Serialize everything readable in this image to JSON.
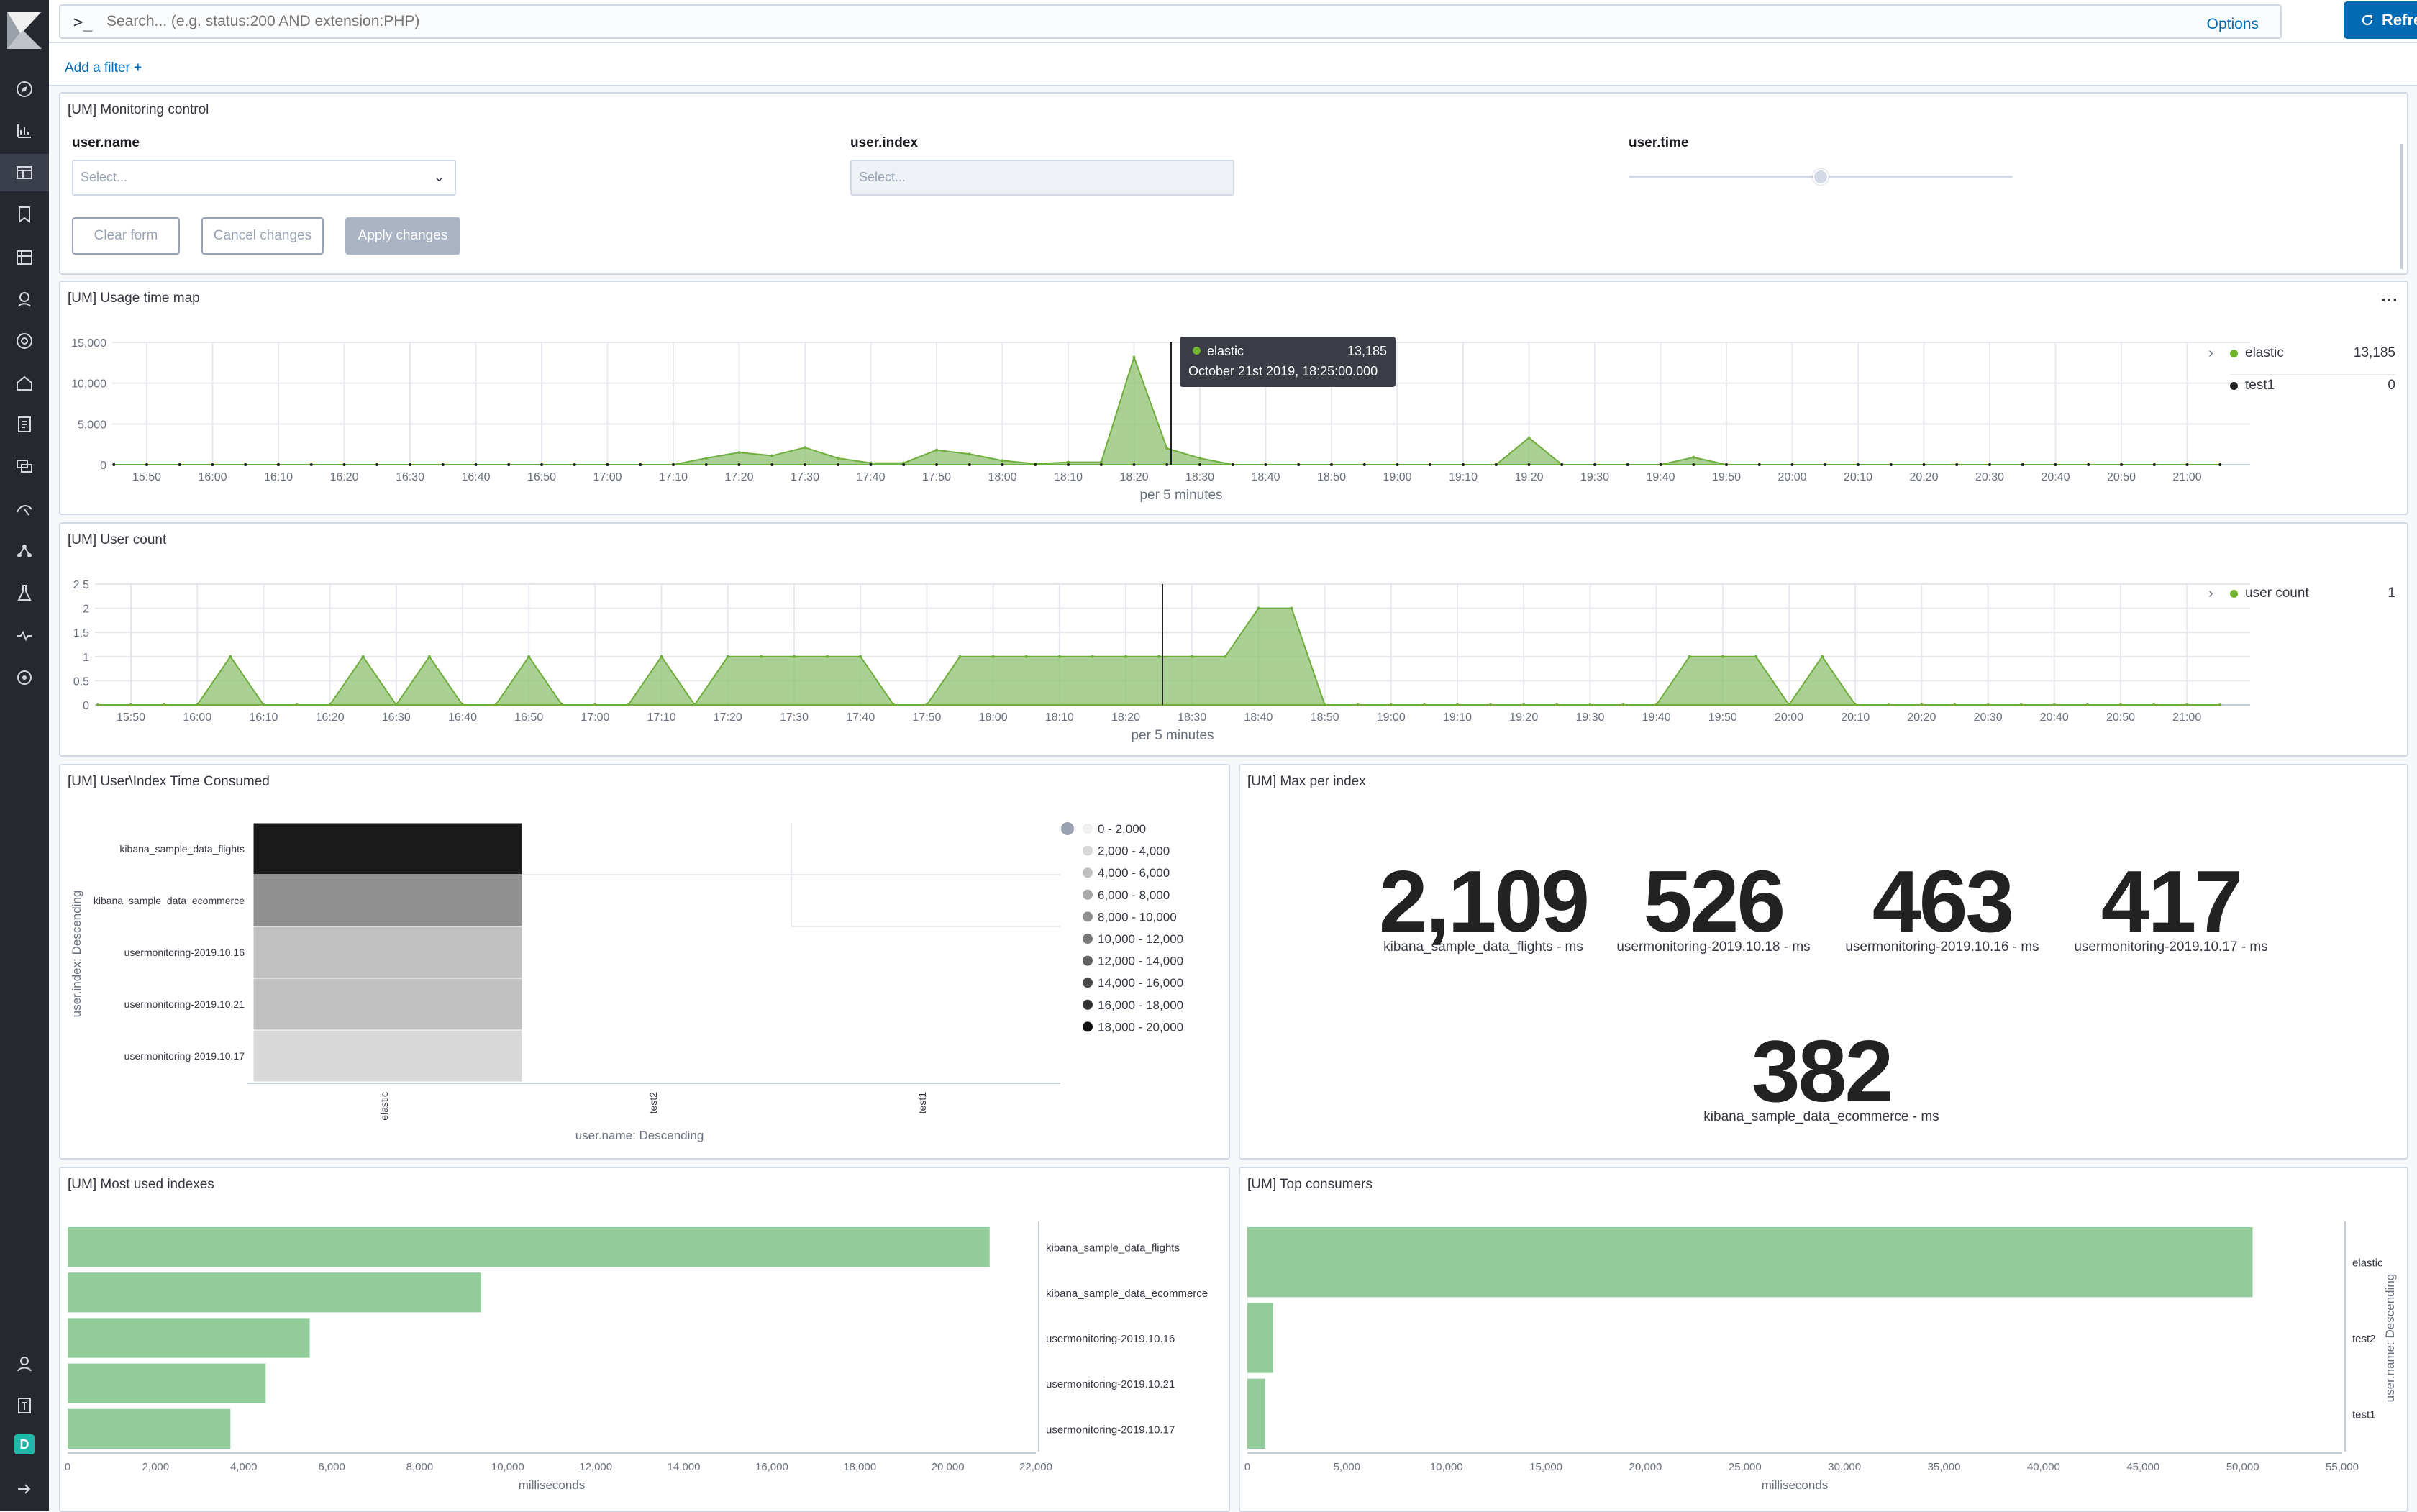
{
  "search": {
    "prompt": ">_",
    "placeholder": "Search... (e.g. status:200 AND extension:PHP)",
    "options_label": "Options",
    "refresh_label": "Refresh"
  },
  "filter": {
    "add_label": "Add a filter",
    "add_icon": "plus-icon"
  },
  "sidebar": {
    "logo": "kibana-logo",
    "items": [
      "discover-icon",
      "visualize-icon",
      "dashboard-icon",
      "canvas-icon",
      "maps-icon",
      "infrastructure-icon",
      "logs-icon",
      "apm-icon",
      "uptime-icon",
      "siem-icon",
      "dev-tools-icon",
      "monitoring-icon",
      "stack-management-icon",
      "user-icon",
      "help-icon",
      "D",
      "collapse-icon"
    ]
  },
  "controls": {
    "title": "[UM] Monitoring control",
    "username_label": "user.name",
    "username_placeholder": "Select...",
    "userindex_label": "user.index",
    "userindex_placeholder": "Select...",
    "usertime_label": "user.time",
    "usertime_value": 0.5,
    "clear_label": "Clear form",
    "cancel_label": "Cancel changes",
    "apply_label": "Apply changes"
  },
  "colors": {
    "accent": "#006bb4",
    "series": "#8dc26f",
    "bar": "#92cc9b"
  },
  "usage": {
    "title": "[UM] Usage time map",
    "xlabel": "per 5 minutes",
    "tooltip": {
      "series": "elastic",
      "value": "13,185",
      "time": "October 21st 2019, 18:25:00.000"
    },
    "legend": [
      {
        "name": "elastic",
        "value": "13,185",
        "color": "#6fb62e"
      },
      {
        "name": "test1",
        "value": "0",
        "color": "#222222"
      }
    ]
  },
  "usercount": {
    "title": "[UM] User count",
    "xlabel": "per 5 minutes",
    "legend": [
      {
        "name": "user count",
        "value": "1",
        "color": "#6fb62e"
      }
    ]
  },
  "heat": {
    "title": "[UM] User\\Index Time Consumed",
    "xlabel": "user.name: Descending",
    "ylabel": "user.index: Descending",
    "legend": [
      "0 - 2,000",
      "2,000 - 4,000",
      "4,000 - 6,000",
      "6,000 - 8,000",
      "8,000 - 10,000",
      "10,000 - 12,000",
      "12,000 - 14,000",
      "14,000 - 16,000",
      "16,000 - 18,000",
      "18,000 - 20,000"
    ]
  },
  "maxper": {
    "title": "[UM] Max per index",
    "metrics": [
      {
        "value": "2,109",
        "label": "kibana_sample_data_flights - ms"
      },
      {
        "value": "526",
        "label": "usermonitoring-2019.10.18 - ms"
      },
      {
        "value": "463",
        "label": "usermonitoring-2019.10.16 - ms"
      },
      {
        "value": "417",
        "label": "usermonitoring-2019.10.17 - ms"
      },
      {
        "value": "382",
        "label": "kibana_sample_data_ecommerce - ms"
      }
    ]
  },
  "mostused": {
    "title": "[UM] Most used indexes",
    "xlabel": "milliseconds"
  },
  "topcons": {
    "title": "[UM] Top consumers",
    "xlabel": "milliseconds",
    "ylabel": "user.name: Descending"
  },
  "chart_data": [
    {
      "type": "area",
      "title": "[UM] Usage time map",
      "xlabel": "per 5 minutes",
      "ylim": [
        0,
        15000
      ],
      "x": [
        "15:45",
        "15:50",
        "15:55",
        "16:00",
        "16:05",
        "16:10",
        "16:15",
        "16:20",
        "16:25",
        "16:30",
        "16:35",
        "16:40",
        "16:45",
        "16:50",
        "16:55",
        "17:00",
        "17:05",
        "17:10",
        "17:15",
        "17:20",
        "17:25",
        "17:30",
        "17:35",
        "17:40",
        "17:45",
        "17:50",
        "17:55",
        "18:00",
        "18:05",
        "18:10",
        "18:15",
        "18:20",
        "18:25",
        "18:30",
        "18:35",
        "18:40",
        "18:45",
        "18:50",
        "18:55",
        "19:00",
        "19:05",
        "19:10",
        "19:15",
        "19:20",
        "19:25",
        "19:30",
        "19:35",
        "19:40",
        "19:45",
        "19:50",
        "19:55",
        "20:00",
        "20:05",
        "20:10",
        "20:15",
        "20:20",
        "20:25",
        "20:30",
        "20:35",
        "20:40",
        "20:45",
        "20:50",
        "20:55",
        "21:00",
        "21:05"
      ],
      "xticks": [
        "15:50",
        "16:00",
        "16:10",
        "16:20",
        "16:30",
        "16:40",
        "16:50",
        "17:00",
        "17:10",
        "17:20",
        "17:30",
        "17:40",
        "17:50",
        "18:00",
        "18:10",
        "18:20",
        "18:30",
        "18:40",
        "18:50",
        "19:00",
        "19:10",
        "19:20",
        "19:30",
        "19:40",
        "19:50",
        "20:00",
        "20:10",
        "20:20",
        "20:30",
        "20:40",
        "20:50",
        "21:00"
      ],
      "yticks": [
        "0",
        "5,000",
        "10,000",
        "15,000"
      ],
      "series": [
        {
          "name": "elastic",
          "values": [
            0,
            0,
            0,
            0,
            0,
            0,
            0,
            0,
            0,
            0,
            0,
            0,
            0,
            0,
            0,
            0,
            0,
            0,
            800,
            1500,
            1100,
            2100,
            800,
            200,
            200,
            1800,
            1300,
            500,
            100,
            300,
            300,
            13185,
            2000,
            800,
            0,
            0,
            0,
            0,
            0,
            0,
            0,
            0,
            0,
            3300,
            0,
            0,
            0,
            0,
            900,
            0,
            0,
            0,
            0,
            0,
            0,
            0,
            0,
            0,
            0,
            0,
            0,
            0,
            0,
            0,
            0
          ]
        },
        {
          "name": "test1",
          "values": [
            0,
            0,
            0,
            0,
            0,
            0,
            0,
            0,
            0,
            0,
            0,
            0,
            0,
            0,
            0,
            0,
            0,
            0,
            0,
            0,
            0,
            0,
            0,
            0,
            0,
            0,
            0,
            0,
            0,
            0,
            0,
            0,
            0,
            0,
            0,
            0,
            0,
            0,
            0,
            0,
            0,
            0,
            0,
            0,
            0,
            0,
            0,
            0,
            0,
            0,
            0,
            0,
            0,
            0,
            0,
            0,
            0,
            0,
            0,
            0,
            0,
            0,
            0,
            0,
            0
          ]
        }
      ]
    },
    {
      "type": "area",
      "title": "[UM] User count",
      "xlabel": "per 5 minutes",
      "ylim": [
        0,
        2.5
      ],
      "xticks": [
        "15:50",
        "16:00",
        "16:10",
        "16:20",
        "16:30",
        "16:40",
        "16:50",
        "17:00",
        "17:10",
        "17:20",
        "17:30",
        "17:40",
        "17:50",
        "18:00",
        "18:10",
        "18:20",
        "18:30",
        "18:40",
        "18:50",
        "19:00",
        "19:10",
        "19:20",
        "19:30",
        "19:40",
        "19:50",
        "20:00",
        "20:10",
        "20:20",
        "20:30",
        "20:40",
        "20:50",
        "21:00"
      ],
      "yticks": [
        "0",
        "0.5",
        "1",
        "1.5",
        "2",
        "2.5"
      ],
      "series": [
        {
          "name": "user count",
          "values": [
            0,
            0,
            0,
            0,
            1,
            0,
            0,
            0,
            1,
            0,
            1,
            0,
            0,
            1,
            0,
            0,
            0,
            1,
            0,
            1,
            1,
            1,
            1,
            1,
            0,
            0,
            1,
            1,
            1,
            1,
            1,
            1,
            1,
            1,
            1,
            2,
            2,
            0,
            0,
            0,
            0,
            0,
            0,
            0,
            0,
            0,
            0,
            0,
            1,
            1,
            1,
            0,
            1,
            0,
            0,
            0,
            0,
            0,
            0,
            0,
            0,
            0,
            0,
            0,
            0
          ]
        }
      ]
    },
    {
      "type": "heatmap",
      "title": "[UM] User\\Index Time Consumed",
      "xlabel": "user.name: Descending",
      "ylabel": "user.index: Descending",
      "x": [
        "elastic",
        "test2",
        "test1"
      ],
      "y": [
        "kibana_sample_data_flights",
        "kibana_sample_data_ecommerce",
        "usermonitoring-2019.10.16",
        "usermonitoring-2019.10.21",
        "usermonitoring-2019.10.17"
      ],
      "values": [
        [
          20000,
          null,
          null
        ],
        [
          9500,
          null,
          null
        ],
        [
          5500,
          null,
          null
        ],
        [
          4500,
          null,
          null
        ],
        [
          3600,
          null,
          null
        ]
      ]
    },
    {
      "type": "bar",
      "title": "[UM] Most used indexes",
      "xlabel": "milliseconds",
      "xlim": [
        0,
        22000
      ],
      "categories": [
        "kibana_sample_data_flights",
        "kibana_sample_data_ecommerce",
        "usermonitoring-2019.10.16",
        "usermonitoring-2019.10.21",
        "usermonitoring-2019.10.17"
      ],
      "values": [
        20950,
        9400,
        5500,
        4500,
        3700
      ],
      "xticks": [
        "0",
        "2,000",
        "4,000",
        "6,000",
        "8,000",
        "10,000",
        "12,000",
        "14,000",
        "16,000",
        "18,000",
        "20,000",
        "22,000"
      ]
    },
    {
      "type": "bar",
      "title": "[UM] Top consumers",
      "xlabel": "milliseconds",
      "ylabel": "user.name: Descending",
      "xlim": [
        0,
        55000
      ],
      "categories": [
        "elastic",
        "test2",
        "test1"
      ],
      "values": [
        50500,
        1300,
        900
      ],
      "xticks": [
        "0",
        "5,000",
        "10,000",
        "15,000",
        "20,000",
        "25,000",
        "30,000",
        "35,000",
        "40,000",
        "45,000",
        "50,000",
        "55,000"
      ]
    }
  ]
}
